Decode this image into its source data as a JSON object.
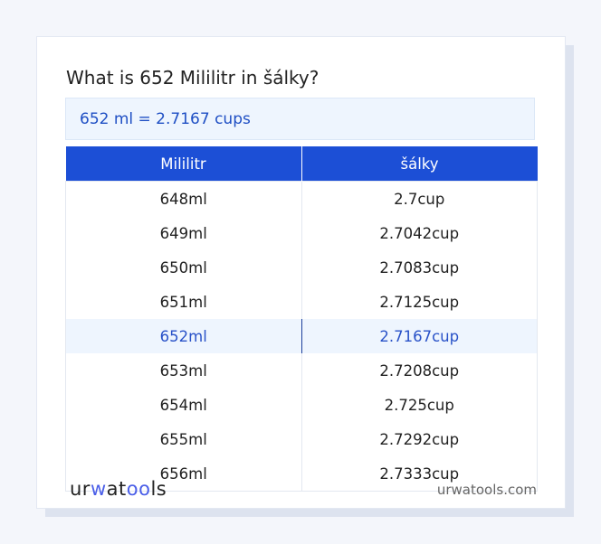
{
  "title": "What is 652 Mililitr in šálky?",
  "result": "652 ml = 2.7167 cups",
  "table": {
    "headers": [
      "Mililitr",
      "šálky"
    ],
    "rows": [
      [
        "648ml",
        "2.7cup"
      ],
      [
        "649ml",
        "2.7042cup"
      ],
      [
        "650ml",
        "2.7083cup"
      ],
      [
        "651ml",
        "2.7125cup"
      ],
      [
        "652ml",
        "2.7167cup"
      ],
      [
        "653ml",
        "2.7208cup"
      ],
      [
        "654ml",
        "2.725cup"
      ],
      [
        "655ml",
        "2.7292cup"
      ],
      [
        "656ml",
        "2.7333cup"
      ]
    ],
    "highlighted_row": 4
  },
  "footer": {
    "logo": "urwatools",
    "logo_parts": [
      "ur",
      "w",
      "at",
      "oo",
      "ls"
    ],
    "site": "urwatools.com"
  },
  "colors": {
    "accent": "#1c4fd6",
    "highlight_bg": "#eef5fe",
    "highlight_text": "#2952c8"
  }
}
